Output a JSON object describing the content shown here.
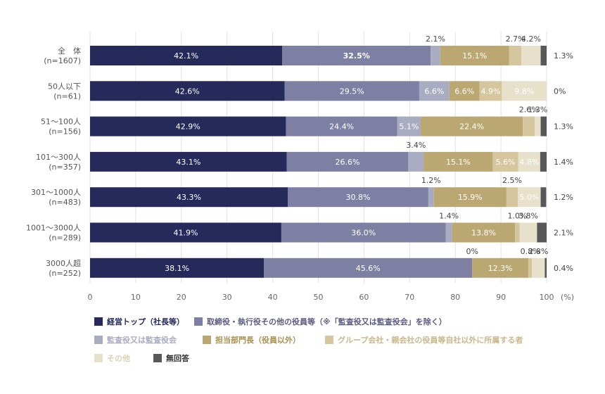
{
  "chart_data": {
    "type": "bar",
    "orientation": "horizontal",
    "stacked": true,
    "categories": [
      {
        "name": "全　体",
        "n": "(n=1607)"
      },
      {
        "name": "50人以下",
        "n": "(n=61)"
      },
      {
        "name": "51〜100人",
        "n": "(n=156)"
      },
      {
        "name": "101〜300人",
        "n": "(n=357)"
      },
      {
        "name": "301〜1000人",
        "n": "(n=483)"
      },
      {
        "name": "1001〜3000人",
        "n": "(n=289)"
      },
      {
        "name": "3000人超",
        "n": "(n=252)"
      }
    ],
    "series": [
      {
        "name": "経営トップ（社長等）",
        "color": "#252a5b",
        "label_color": "#ffffff",
        "bold": false,
        "values": [
          42.1,
          42.6,
          42.9,
          43.1,
          43.3,
          41.9,
          38.1
        ],
        "labels": [
          "42.1%",
          "42.6%",
          "42.9%",
          "43.1%",
          "43.3%",
          "41.9%",
          "38.1%"
        ]
      },
      {
        "name": "取締役・執行役その他の役員等（※「監査役又は監査役会」を除く）",
        "color": "#7d7fa3",
        "label_color": "#ffffff",
        "bold": false,
        "values": [
          32.5,
          29.5,
          24.4,
          26.6,
          30.8,
          36.0,
          45.6
        ],
        "labels": [
          "32.5%",
          "29.5%",
          "24.4%",
          "26.6%",
          "30.8%",
          "36.0%",
          "45.6%"
        ]
      },
      {
        "name": "監査役又は監査役会",
        "color": "#a9abc1",
        "label_color": "#ffffff",
        "bold": false,
        "values": [
          2.1,
          6.6,
          5.1,
          3.4,
          1.2,
          1.4,
          0
        ],
        "labels": [
          "2.1%",
          "6.6%",
          "5.1%",
          "3.4%",
          "1.2%",
          "1.4%",
          "0%"
        ]
      },
      {
        "name": "担当部門長（役員以外）",
        "color": "#bba772",
        "label_color": "#ffffff",
        "bold": false,
        "values": [
          15.1,
          6.6,
          22.4,
          15.1,
          15.9,
          13.8,
          12.3
        ],
        "labels": [
          "15.1%",
          "6.6%",
          "22.4%",
          "15.1%",
          "15.9%",
          "13.8%",
          "12.3%"
        ]
      },
      {
        "name": "グループ会社・親会社の役員等自社以外に所属する者",
        "color": "#d6c69e",
        "label_color": "#ffffff",
        "bold": false,
        "values": [
          2.7,
          4.9,
          2.6,
          5.6,
          2.5,
          1.0,
          0.8
        ],
        "labels": [
          "2.7%",
          "4.9%",
          "2.6%",
          "5.6%",
          "2.5%",
          "1.0%",
          "0.8%"
        ]
      },
      {
        "name": "その他",
        "color": "#e7e1cb",
        "label_color": "#ffffff",
        "bold": false,
        "values": [
          4.2,
          9.8,
          1.3,
          4.8,
          5.0,
          3.8,
          2.8
        ],
        "labels": [
          "4.2%",
          "9.8%",
          "1.3%",
          "4.8%",
          "5.0%",
          "3.8%",
          "2.8%"
        ]
      },
      {
        "name": "無回答",
        "color": "#58585a",
        "label_color": "#333333",
        "bold": false,
        "values": [
          1.3,
          0,
          1.3,
          1.4,
          1.2,
          2.1,
          0.4
        ],
        "labels": [
          "1.3%",
          "0%",
          "1.3%",
          "1.4%",
          "1.2%",
          "2.1%",
          "0.4%"
        ]
      }
    ],
    "x_ticks": [
      "0",
      "10",
      "20",
      "30",
      "40",
      "50",
      "60",
      "70",
      "80",
      "90",
      "100"
    ],
    "x_unit": "(%)",
    "xlim": [
      0,
      100
    ],
    "grid": true,
    "legend_position": "bottom",
    "segment_label_placement": [
      [
        "in",
        "in",
        "above",
        "in",
        "above",
        "above",
        "right"
      ],
      [
        "in",
        "in",
        "in",
        "in",
        "in",
        "in",
        "right"
      ],
      [
        "in",
        "in",
        "in",
        "in",
        "above",
        "above",
        "right"
      ],
      [
        "in",
        "in",
        "above",
        "in",
        "in",
        "in",
        "right"
      ],
      [
        "in",
        "in",
        "above",
        "in",
        "above",
        "in",
        "right"
      ],
      [
        "in",
        "in",
        "above",
        "in",
        "above",
        "above",
        "right"
      ],
      [
        "in",
        "in",
        "above",
        "in",
        "above",
        "above",
        "right"
      ]
    ]
  }
}
